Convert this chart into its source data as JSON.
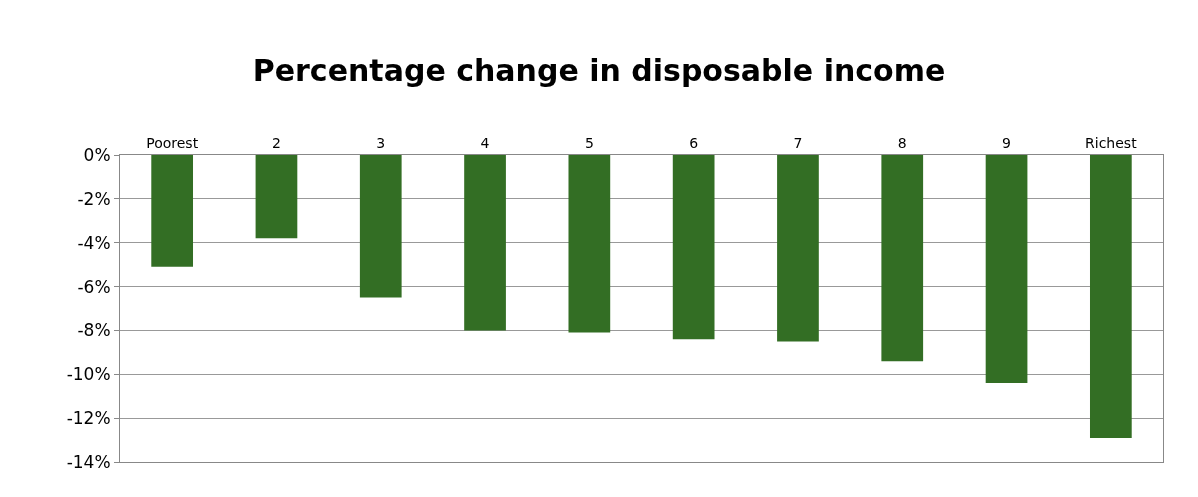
{
  "chart_data": {
    "type": "bar",
    "title": "Percentage change in disposable income",
    "categories": [
      "Poorest",
      "2",
      "3",
      "4",
      "5",
      "6",
      "7",
      "8",
      "9",
      "Richest"
    ],
    "values": [
      -5.1,
      -3.8,
      -6.5,
      -8.0,
      -8.1,
      -8.4,
      -8.5,
      -9.4,
      -10.4,
      -12.9
    ],
    "color": "#336e24",
    "ylim": [
      -14,
      0
    ],
    "yticks": [
      {
        "value": 0,
        "label": "0%"
      },
      {
        "value": -2,
        "label": "-2%"
      },
      {
        "value": -4,
        "label": "-4%"
      },
      {
        "value": -6,
        "label": "-6%"
      },
      {
        "value": -8,
        "label": "-8%"
      },
      {
        "value": -10,
        "label": "-10%"
      },
      {
        "value": -12,
        "label": "-12%"
      },
      {
        "value": -14,
        "label": "-14%"
      }
    ],
    "grid": "y"
  }
}
